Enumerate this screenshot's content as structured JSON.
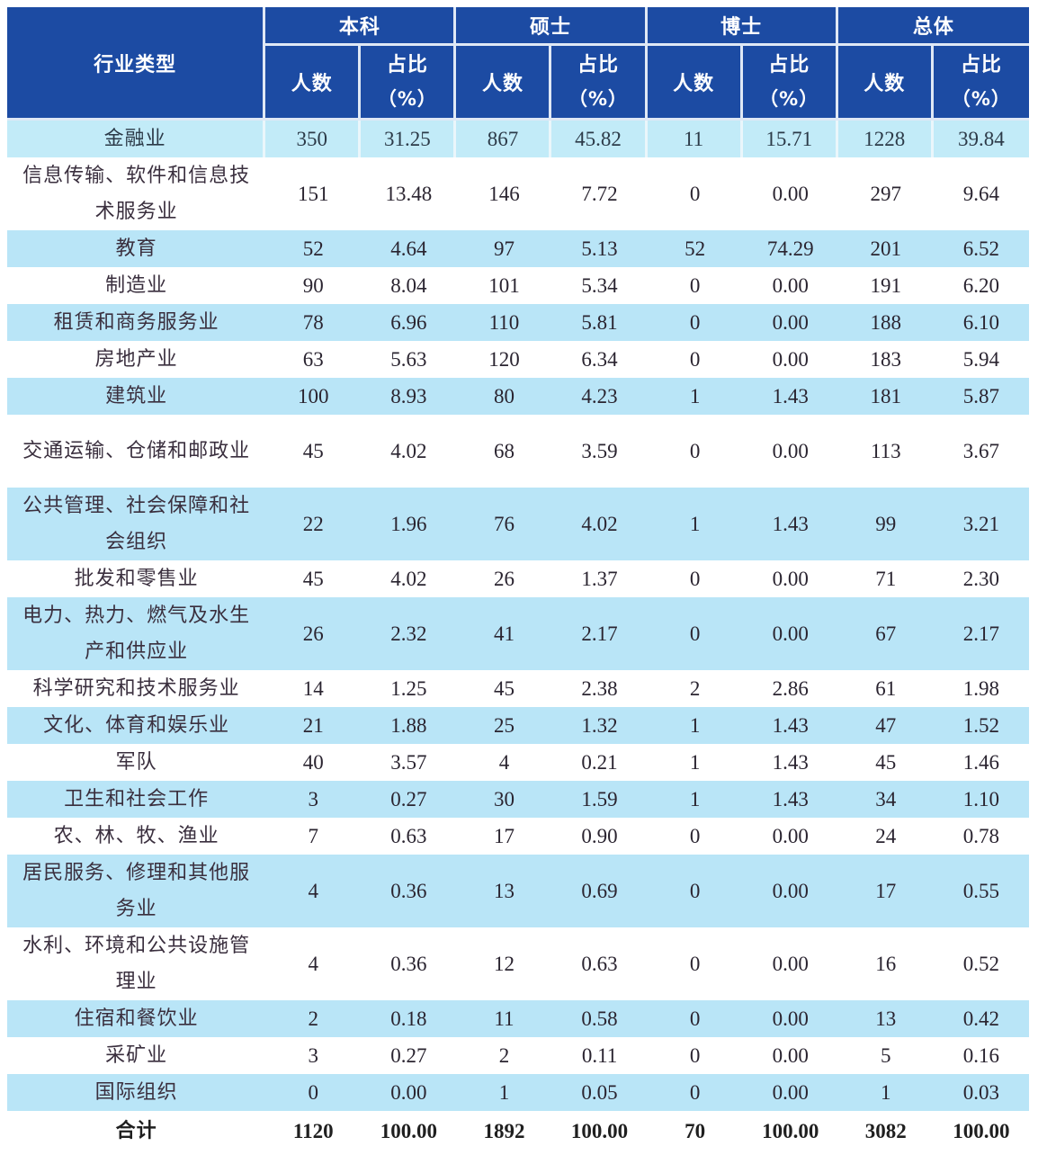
{
  "table": {
    "header": {
      "industry": "行业类型",
      "groups": [
        "本科",
        "硕士",
        "博士",
        "总体"
      ],
      "count_label": "人数",
      "pct_label": "占比",
      "pct_unit": "（%）"
    },
    "rows": [
      {
        "industry": "金融业",
        "bachelor_n": "350",
        "bachelor_pct": "31.25",
        "master_n": "867",
        "master_pct": "45.82",
        "doctor_n": "11",
        "doctor_pct": "15.71",
        "total_n": "1228",
        "total_pct": "39.84"
      },
      {
        "industry": "信息传输、软件和信息技术服务业",
        "bachelor_n": "151",
        "bachelor_pct": "13.48",
        "master_n": "146",
        "master_pct": "7.72",
        "doctor_n": "0",
        "doctor_pct": "0.00",
        "total_n": "297",
        "total_pct": "9.64"
      },
      {
        "industry": "教育",
        "bachelor_n": "52",
        "bachelor_pct": "4.64",
        "master_n": "97",
        "master_pct": "5.13",
        "doctor_n": "52",
        "doctor_pct": "74.29",
        "total_n": "201",
        "total_pct": "6.52"
      },
      {
        "industry": "制造业",
        "bachelor_n": "90",
        "bachelor_pct": "8.04",
        "master_n": "101",
        "master_pct": "5.34",
        "doctor_n": "0",
        "doctor_pct": "0.00",
        "total_n": "191",
        "total_pct": "6.20"
      },
      {
        "industry": "租赁和商务服务业",
        "bachelor_n": "78",
        "bachelor_pct": "6.96",
        "master_n": "110",
        "master_pct": "5.81",
        "doctor_n": "0",
        "doctor_pct": "0.00",
        "total_n": "188",
        "total_pct": "6.10"
      },
      {
        "industry": "房地产业",
        "bachelor_n": "63",
        "bachelor_pct": "5.63",
        "master_n": "120",
        "master_pct": "6.34",
        "doctor_n": "0",
        "doctor_pct": "0.00",
        "total_n": "183",
        "total_pct": "5.94"
      },
      {
        "industry": "建筑业",
        "bachelor_n": "100",
        "bachelor_pct": "8.93",
        "master_n": "80",
        "master_pct": "4.23",
        "doctor_n": "1",
        "doctor_pct": "1.43",
        "total_n": "181",
        "total_pct": "5.87"
      },
      {
        "industry": "交通运输、仓储和邮政业",
        "bachelor_n": "45",
        "bachelor_pct": "4.02",
        "master_n": "68",
        "master_pct": "3.59",
        "doctor_n": "0",
        "doctor_pct": "0.00",
        "total_n": "113",
        "total_pct": "3.67"
      },
      {
        "industry": "公共管理、社会保障和社会组织",
        "bachelor_n": "22",
        "bachelor_pct": "1.96",
        "master_n": "76",
        "master_pct": "4.02",
        "doctor_n": "1",
        "doctor_pct": "1.43",
        "total_n": "99",
        "total_pct": "3.21"
      },
      {
        "industry": "批发和零售业",
        "bachelor_n": "45",
        "bachelor_pct": "4.02",
        "master_n": "26",
        "master_pct": "1.37",
        "doctor_n": "0",
        "doctor_pct": "0.00",
        "total_n": "71",
        "total_pct": "2.30"
      },
      {
        "industry": "电力、热力、燃气及水生产和供应业",
        "bachelor_n": "26",
        "bachelor_pct": "2.32",
        "master_n": "41",
        "master_pct": "2.17",
        "doctor_n": "0",
        "doctor_pct": "0.00",
        "total_n": "67",
        "total_pct": "2.17"
      },
      {
        "industry": "科学研究和技术服务业",
        "bachelor_n": "14",
        "bachelor_pct": "1.25",
        "master_n": "45",
        "master_pct": "2.38",
        "doctor_n": "2",
        "doctor_pct": "2.86",
        "total_n": "61",
        "total_pct": "1.98"
      },
      {
        "industry": "文化、体育和娱乐业",
        "bachelor_n": "21",
        "bachelor_pct": "1.88",
        "master_n": "25",
        "master_pct": "1.32",
        "doctor_n": "1",
        "doctor_pct": "1.43",
        "total_n": "47",
        "total_pct": "1.52"
      },
      {
        "industry": "军队",
        "bachelor_n": "40",
        "bachelor_pct": "3.57",
        "master_n": "4",
        "master_pct": "0.21",
        "doctor_n": "1",
        "doctor_pct": "1.43",
        "total_n": "45",
        "total_pct": "1.46"
      },
      {
        "industry": "卫生和社会工作",
        "bachelor_n": "3",
        "bachelor_pct": "0.27",
        "master_n": "30",
        "master_pct": "1.59",
        "doctor_n": "1",
        "doctor_pct": "1.43",
        "total_n": "34",
        "total_pct": "1.10"
      },
      {
        "industry": "农、林、牧、渔业",
        "bachelor_n": "7",
        "bachelor_pct": "0.63",
        "master_n": "17",
        "master_pct": "0.90",
        "doctor_n": "0",
        "doctor_pct": "0.00",
        "total_n": "24",
        "total_pct": "0.78"
      },
      {
        "industry": "居民服务、修理和其他服务业",
        "bachelor_n": "4",
        "bachelor_pct": "0.36",
        "master_n": "13",
        "master_pct": "0.69",
        "doctor_n": "0",
        "doctor_pct": "0.00",
        "total_n": "17",
        "total_pct": "0.55"
      },
      {
        "industry": "水利、环境和公共设施管理业",
        "bachelor_n": "4",
        "bachelor_pct": "0.36",
        "master_n": "12",
        "master_pct": "0.63",
        "doctor_n": "0",
        "doctor_pct": "0.00",
        "total_n": "16",
        "total_pct": "0.52"
      },
      {
        "industry": "住宿和餐饮业",
        "bachelor_n": "2",
        "bachelor_pct": "0.18",
        "master_n": "11",
        "master_pct": "0.58",
        "doctor_n": "0",
        "doctor_pct": "0.00",
        "total_n": "13",
        "total_pct": "0.42"
      },
      {
        "industry": "采矿业",
        "bachelor_n": "3",
        "bachelor_pct": "0.27",
        "master_n": "2",
        "master_pct": "0.11",
        "doctor_n": "0",
        "doctor_pct": "0.00",
        "total_n": "5",
        "total_pct": "0.16"
      },
      {
        "industry": "国际组织",
        "bachelor_n": "0",
        "bachelor_pct": "0.00",
        "master_n": "1",
        "master_pct": "0.05",
        "doctor_n": "0",
        "doctor_pct": "0.00",
        "total_n": "1",
        "total_pct": "0.03"
      }
    ],
    "total": {
      "industry": "合计",
      "bachelor_n": "1120",
      "bachelor_pct": "100.00",
      "master_n": "1892",
      "master_pct": "100.00",
      "doctor_n": "70",
      "doctor_pct": "100.00",
      "total_n": "3082",
      "total_pct": "100.00"
    }
  },
  "colors": {
    "header_bg": "#1c4ba3",
    "header_text": "#ffffff",
    "stripe_bg": "#b9e5f7",
    "first_row_bg": "#c2ebf8",
    "body_text": "#2a2430"
  }
}
